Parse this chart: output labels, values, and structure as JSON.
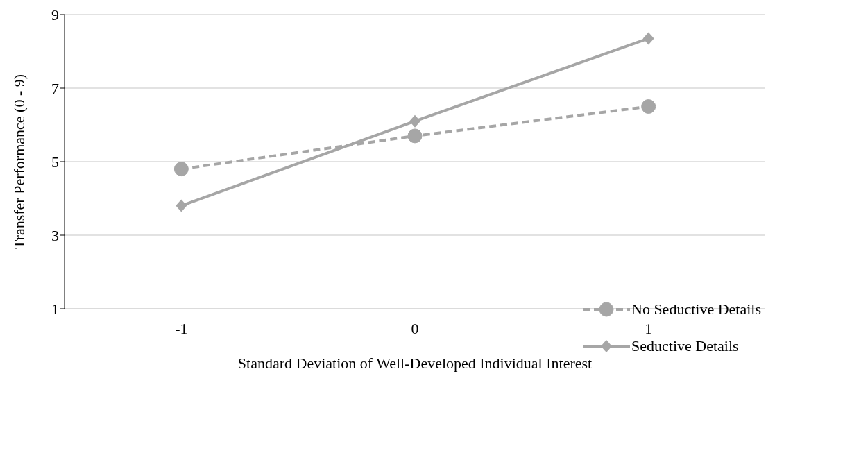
{
  "chart_data": {
    "type": "line",
    "xlabel": "Standard Deviation of Well-Developed Individual Interest",
    "ylabel": "Transfer Performance (0 - 9)",
    "categories": [
      "-1",
      "0",
      "1"
    ],
    "series": [
      {
        "name": "No Seductive Details",
        "color": "#a6a6a6",
        "values": [
          4.8,
          5.7,
          6.5
        ],
        "marker": "circle",
        "line_style": "dashed"
      },
      {
        "name": "Seductive Details",
        "color": "#a6a6a6",
        "values": [
          3.8,
          6.1,
          8.35
        ],
        "marker": "diamond",
        "line_style": "solid"
      }
    ],
    "ylim": [
      1,
      9
    ],
    "yticks": [
      1,
      3,
      5,
      7,
      9
    ],
    "grid": "y",
    "legend": "bottom right"
  }
}
